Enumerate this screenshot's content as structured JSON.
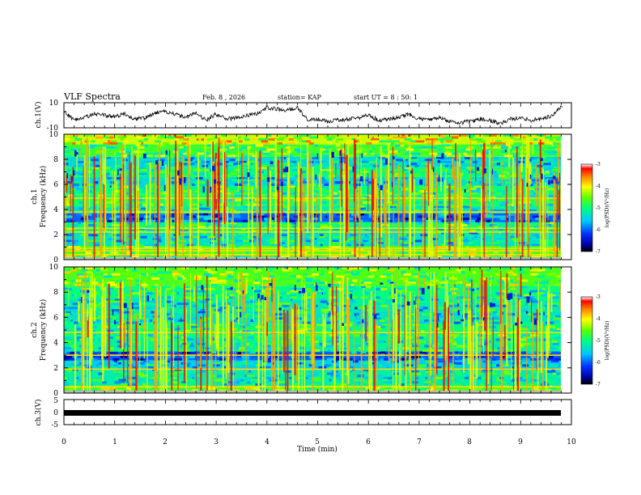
{
  "header": {
    "title": "VLF Spectra",
    "date": "Feb. 8 , 2026",
    "station": "station= KAP",
    "start": "start  UT =   8 : 50: 1"
  },
  "chart_data": [
    {
      "type": "line",
      "id": "ch1-waveform",
      "ylabel": "ch.1(V)",
      "ylim": [
        -10,
        10
      ],
      "ytick_labels": [
        "10",
        "-10"
      ],
      "x": [
        0,
        0.2,
        0.4,
        0.6,
        0.8,
        1.0,
        1.2,
        1.4,
        1.6,
        1.8,
        2.0,
        2.2,
        2.4,
        2.6,
        2.8,
        3.0,
        3.2,
        3.4,
        3.6,
        3.8,
        4.0,
        4.2,
        4.4,
        4.6,
        4.8,
        5.0,
        5.2,
        5.4,
        5.6,
        5.8,
        6.0,
        6.2,
        6.4,
        6.6,
        6.8,
        7.0,
        7.2,
        7.4,
        7.6,
        7.8,
        8.0,
        8.2,
        8.4,
        8.6,
        8.8,
        9.0,
        9.2,
        9.4,
        9.6,
        9.8
      ],
      "y": [
        3,
        -4,
        -2,
        1,
        0,
        -1,
        1,
        -3,
        -2,
        2,
        3,
        1,
        -2,
        2,
        -4,
        1,
        -3,
        -2,
        0,
        1,
        6,
        5,
        4,
        6,
        -4,
        -3,
        -5,
        -4,
        -3,
        -2,
        0,
        -4,
        -3,
        -2,
        1,
        -3,
        -3,
        -2,
        -5,
        -6,
        -5,
        -3,
        -4,
        -7,
        -3,
        -2,
        -4,
        -3,
        -1,
        7
      ]
    },
    {
      "type": "heatmap",
      "id": "ch1-spectrogram",
      "ylabel_lines": [
        "ch.1",
        "Frequency  (kHz)"
      ],
      "ylim": [
        0,
        10
      ],
      "ytick_labels": [
        "0",
        "2",
        "4",
        "6",
        "8",
        "10"
      ],
      "colorbar": {
        "range": [
          -7,
          -3
        ],
        "tick_labels": [
          "-3",
          "-4",
          "-5",
          "-6",
          "-7"
        ],
        "label": "log(PSD)(V²/Hz)"
      },
      "bands": [
        {
          "from": 0,
          "to": 1.1,
          "log_psd": -4.6
        },
        {
          "from": 1.1,
          "to": 2.2,
          "log_psd": -5.3
        },
        {
          "from": 2.2,
          "to": 3.0,
          "log_psd": -5.0
        },
        {
          "from": 3.0,
          "to": 3.7,
          "log_psd": -6.0
        },
        {
          "from": 3.7,
          "to": 4.3,
          "log_psd": -5.2
        },
        {
          "from": 4.3,
          "to": 5.2,
          "log_psd": -4.9
        },
        {
          "from": 5.2,
          "to": 5.9,
          "log_psd": -5.0
        },
        {
          "from": 5.9,
          "to": 6.6,
          "log_psd": -5.4
        },
        {
          "from": 6.6,
          "to": 7.4,
          "log_psd": -5.0
        },
        {
          "from": 7.4,
          "to": 8.2,
          "log_psd": -5.4
        },
        {
          "from": 8.2,
          "to": 9.2,
          "log_psd": -4.7
        },
        {
          "from": 9.2,
          "to": 10,
          "log_psd": -4.2
        }
      ],
      "lines_khz": [
        0.4,
        0.7,
        0.9,
        2.2,
        2.5,
        3.8,
        4.9
      ]
    },
    {
      "type": "heatmap",
      "id": "ch2-spectrogram",
      "ylabel_lines": [
        "ch.2",
        "Frequency  (kHz)"
      ],
      "ylim": [
        0,
        10
      ],
      "ytick_labels": [
        "0",
        "2",
        "4",
        "6",
        "8",
        "10"
      ],
      "colorbar": {
        "range": [
          -7,
          -3
        ],
        "tick_labels": [
          "-3",
          "-4",
          "-5",
          "-6",
          "-7"
        ],
        "label": "log(PSD)(V²/Hz)"
      },
      "bands": [
        {
          "from": 0,
          "to": 0.6,
          "log_psd": -4.6
        },
        {
          "from": 0.6,
          "to": 1.8,
          "log_psd": -5.2
        },
        {
          "from": 1.8,
          "to": 2.6,
          "log_psd": -5.5
        },
        {
          "from": 2.6,
          "to": 3.3,
          "log_psd": -6.0
        },
        {
          "from": 3.3,
          "to": 4.5,
          "log_psd": -5.1
        },
        {
          "from": 4.5,
          "to": 5.5,
          "log_psd": -5.0
        },
        {
          "from": 5.5,
          "to": 6.5,
          "log_psd": -5.3
        },
        {
          "from": 6.5,
          "to": 7.5,
          "log_psd": -5.2
        },
        {
          "from": 7.5,
          "to": 8.5,
          "log_psd": -5.0
        },
        {
          "from": 8.5,
          "to": 10,
          "log_psd": -4.6
        }
      ],
      "lines_khz": [
        0.5,
        1.9,
        3.0,
        4.8
      ]
    },
    {
      "type": "line",
      "id": "ch3-waveform",
      "ylabel": "ch.3(V)",
      "ylim": [
        -5,
        5
      ],
      "ytick_labels": [
        "5",
        "0",
        "-5"
      ],
      "value": 0,
      "xlabel": "Time  (min)",
      "xlim": [
        0,
        10
      ],
      "xtick_labels": [
        "0",
        "1",
        "2",
        "3",
        "4",
        "5",
        "6",
        "7",
        "8",
        "9",
        "10"
      ]
    }
  ]
}
